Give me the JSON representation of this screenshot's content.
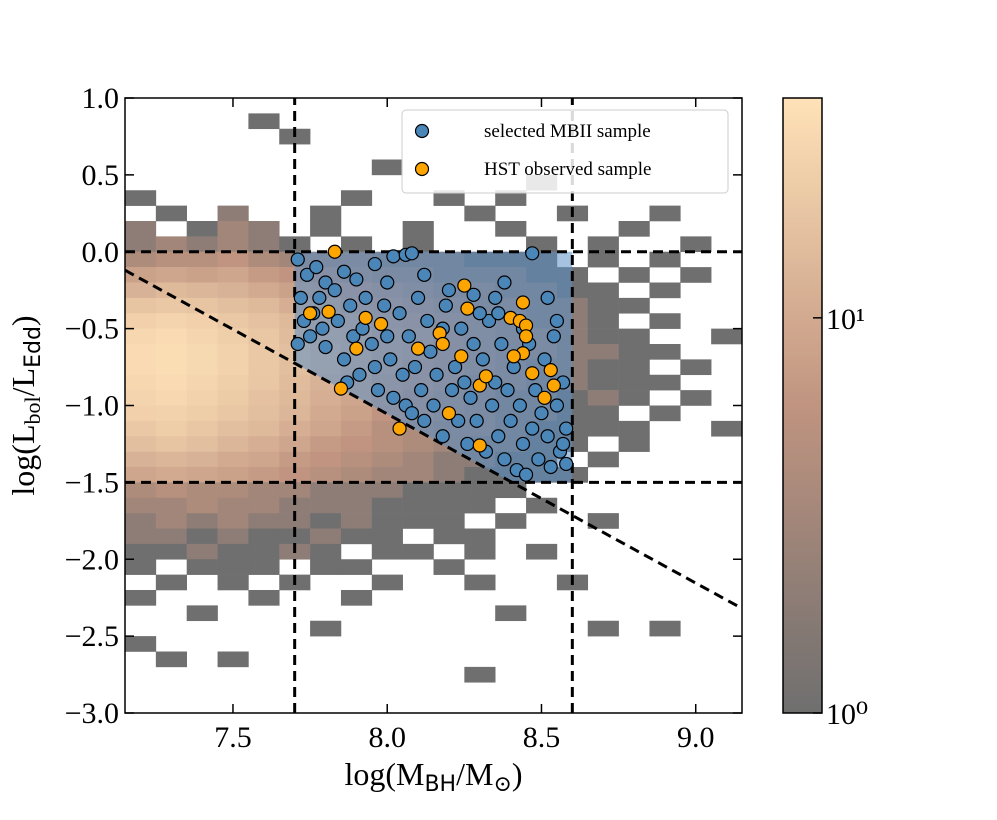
{
  "chart_data": {
    "type": "scatter",
    "xlabel": [
      "log(M",
      "BH",
      "/M",
      "⊙",
      ")"
    ],
    "ylabel": [
      "log(L",
      "bol",
      "/L",
      "Edd",
      ")"
    ],
    "xlim": [
      7.15,
      9.15
    ],
    "ylim": [
      -3.0,
      1.0
    ],
    "xticks": [
      7.5,
      {
        "value": 8.0,
        "label": "8.0"
      },
      8.5,
      {
        "value": 9.0,
        "label": "9.0"
      }
    ],
    "yticks": [
      {
        "value": 1.0,
        "label": "1.0"
      },
      0.5,
      {
        "value": 0.0,
        "label": "0.0"
      },
      {
        "value": -0.5,
        "label": "−0.5"
      },
      {
        "value": -1.0,
        "label": "−1.0"
      },
      {
        "value": -1.5,
        "label": "−1.5"
      },
      {
        "value": -2.0,
        "label": "−2.0"
      },
      {
        "value": -2.5,
        "label": "−2.5"
      },
      {
        "value": -3.0,
        "label": "−3.0"
      }
    ],
    "legend": "upper right",
    "colormap": [
      "#6f6f6f",
      "#c09480",
      "#ffe2b8"
    ],
    "clim": [
      1,
      36
    ],
    "cbar_log": true,
    "cbar_ticks": [
      {
        "value": 1,
        "label": "10⁰"
      },
      {
        "value": 10,
        "label": "10¹"
      }
    ],
    "hist": {
      "xbins": [
        7.15,
        7.25,
        7.35,
        7.45,
        7.55,
        7.65,
        7.75,
        7.85,
        7.95,
        8.05,
        8.15,
        8.25,
        8.35,
        8.45,
        8.55,
        8.65,
        8.75,
        8.85,
        8.95,
        9.05,
        9.15
      ],
      "ybins": [
        1.0,
        0.9,
        0.8,
        0.7,
        0.6,
        0.5,
        0.4,
        0.3,
        0.2,
        0.1,
        0.0,
        -0.1,
        -0.2,
        -0.3,
        -0.4,
        -0.5,
        -0.6,
        -0.7,
        -0.8,
        -0.9,
        -1.0,
        -1.1,
        -1.2,
        -1.3,
        -1.4,
        -1.5,
        -1.6,
        -1.7,
        -1.8,
        -1.9,
        -2.0,
        -2.1,
        -2.2,
        -2.3,
        -2.4,
        -2.5,
        -2.6,
        -2.7,
        -2.8,
        -2.9,
        -3.0
      ],
      "counts": [
        [
          0,
          0,
          0,
          0,
          0,
          0,
          0,
          0,
          0,
          0,
          0,
          0,
          0,
          0,
          0,
          0,
          0,
          0,
          0,
          0
        ],
        [
          0,
          0,
          0,
          0,
          1,
          0,
          0,
          0,
          0,
          0,
          0,
          0,
          0,
          0,
          0,
          0,
          0,
          0,
          0,
          0
        ],
        [
          0,
          0,
          0,
          0,
          0,
          1,
          0,
          0,
          0,
          0,
          0,
          0,
          0,
          0,
          0,
          0,
          0,
          0,
          0,
          0
        ],
        [
          0,
          0,
          0,
          0,
          0,
          0,
          0,
          0,
          0,
          0,
          0,
          0,
          0,
          0,
          0,
          0,
          0,
          0,
          0,
          0
        ],
        [
          0,
          0,
          0,
          0,
          0,
          0,
          0,
          0,
          1,
          0,
          0,
          0,
          0,
          0,
          0,
          0,
          0,
          0,
          0,
          0
        ],
        [
          0,
          0,
          0,
          0,
          0,
          0,
          0,
          0,
          0,
          0,
          0,
          0,
          0,
          1,
          0,
          0,
          0,
          0,
          0,
          0
        ],
        [
          1,
          0,
          0,
          0,
          0,
          0,
          0,
          1,
          0,
          0,
          1,
          0,
          1,
          0,
          0,
          0,
          0,
          0,
          0,
          0
        ],
        [
          0,
          1,
          0,
          2,
          0,
          0,
          1,
          0,
          0,
          0,
          0,
          1,
          0,
          0,
          1,
          0,
          0,
          1,
          0,
          0
        ],
        [
          2,
          0,
          1,
          3,
          2,
          0,
          1,
          0,
          0,
          1,
          0,
          0,
          1,
          0,
          0,
          0,
          1,
          0,
          0,
          0
        ],
        [
          2,
          3,
          2,
          3,
          2,
          1,
          0,
          1,
          0,
          1,
          0,
          0,
          0,
          1,
          0,
          1,
          0,
          0,
          1,
          0
        ],
        [
          4,
          5,
          5,
          6,
          4,
          3,
          3,
          3,
          2,
          2,
          2,
          1,
          1,
          1,
          0,
          1,
          0,
          1,
          0,
          0
        ],
        [
          8,
          9,
          8,
          9,
          7,
          6,
          5,
          4,
          3,
          3,
          2,
          2,
          2,
          1,
          1,
          0,
          1,
          0,
          1,
          0
        ],
        [
          12,
          14,
          13,
          12,
          10,
          8,
          7,
          6,
          5,
          4,
          3,
          3,
          2,
          2,
          1,
          1,
          0,
          1,
          0,
          0
        ],
        [
          18,
          20,
          18,
          16,
          14,
          11,
          9,
          7,
          6,
          5,
          4,
          3,
          3,
          2,
          2,
          1,
          1,
          0,
          0,
          0
        ],
        [
          24,
          26,
          24,
          20,
          17,
          14,
          11,
          9,
          7,
          6,
          5,
          4,
          3,
          2,
          2,
          1,
          0,
          1,
          0,
          0
        ],
        [
          28,
          30,
          27,
          23,
          19,
          15,
          12,
          10,
          8,
          7,
          5,
          4,
          3,
          3,
          2,
          1,
          1,
          0,
          0,
          1
        ],
        [
          30,
          32,
          29,
          25,
          20,
          16,
          13,
          10,
          8,
          7,
          5,
          4,
          3,
          3,
          2,
          2,
          1,
          1,
          0,
          0
        ],
        [
          30,
          32,
          29,
          25,
          20,
          16,
          13,
          10,
          8,
          6,
          5,
          4,
          3,
          2,
          2,
          1,
          1,
          0,
          1,
          0
        ],
        [
          28,
          30,
          27,
          23,
          19,
          15,
          12,
          9,
          7,
          6,
          5,
          3,
          3,
          2,
          2,
          1,
          1,
          1,
          0,
          0
        ],
        [
          26,
          28,
          25,
          21,
          17,
          14,
          11,
          9,
          7,
          5,
          4,
          3,
          2,
          2,
          1,
          2,
          1,
          0,
          1,
          0
        ],
        [
          24,
          25,
          22,
          19,
          16,
          13,
          10,
          8,
          6,
          5,
          4,
          3,
          2,
          2,
          1,
          1,
          0,
          1,
          0,
          0
        ],
        [
          20,
          22,
          19,
          16,
          14,
          11,
          9,
          7,
          5,
          4,
          3,
          3,
          2,
          1,
          1,
          1,
          1,
          0,
          0,
          1
        ],
        [
          16,
          18,
          16,
          13,
          11,
          9,
          7,
          6,
          5,
          4,
          3,
          2,
          2,
          1,
          1,
          0,
          1,
          0,
          0,
          0
        ],
        [
          12,
          13,
          12,
          10,
          9,
          7,
          6,
          5,
          4,
          3,
          2,
          2,
          1,
          1,
          0,
          1,
          0,
          0,
          0,
          0
        ],
        [
          9,
          10,
          9,
          8,
          7,
          6,
          5,
          4,
          3,
          3,
          2,
          1,
          1,
          1,
          1,
          0,
          0,
          0,
          0,
          0
        ],
        [
          4,
          5,
          4,
          4,
          3,
          3,
          2,
          2,
          2,
          1,
          1,
          1,
          1,
          0,
          0,
          0,
          0,
          0,
          0,
          0
        ],
        [
          3,
          3,
          4,
          3,
          3,
          2,
          2,
          2,
          1,
          1,
          1,
          1,
          0,
          1,
          0,
          0,
          0,
          0,
          0,
          0
        ],
        [
          2,
          3,
          2,
          3,
          2,
          2,
          1,
          2,
          1,
          1,
          1,
          0,
          1,
          0,
          0,
          1,
          0,
          0,
          0,
          0
        ],
        [
          2,
          2,
          1,
          2,
          1,
          1,
          2,
          1,
          1,
          0,
          1,
          1,
          0,
          0,
          0,
          0,
          0,
          0,
          0,
          0
        ],
        [
          1,
          1,
          2,
          1,
          1,
          2,
          1,
          0,
          1,
          1,
          0,
          1,
          0,
          1,
          0,
          0,
          0,
          0,
          0,
          0
        ],
        [
          1,
          0,
          1,
          1,
          1,
          0,
          1,
          1,
          0,
          0,
          1,
          0,
          0,
          0,
          0,
          0,
          0,
          0,
          0,
          0
        ],
        [
          0,
          1,
          0,
          1,
          0,
          1,
          0,
          0,
          1,
          0,
          0,
          1,
          0,
          0,
          1,
          0,
          0,
          0,
          0,
          0
        ],
        [
          1,
          0,
          0,
          0,
          1,
          0,
          0,
          1,
          0,
          0,
          0,
          0,
          0,
          0,
          0,
          0,
          0,
          0,
          0,
          0
        ],
        [
          0,
          0,
          1,
          0,
          0,
          0,
          0,
          0,
          0,
          0,
          0,
          0,
          1,
          0,
          0,
          0,
          0,
          0,
          0,
          0
        ],
        [
          0,
          0,
          0,
          0,
          0,
          0,
          1,
          0,
          0,
          0,
          0,
          0,
          0,
          0,
          0,
          1,
          0,
          1,
          0,
          0
        ],
        [
          1,
          0,
          0,
          0,
          0,
          0,
          0,
          0,
          0,
          0,
          0,
          0,
          0,
          0,
          0,
          0,
          0,
          0,
          0,
          0
        ],
        [
          0,
          1,
          0,
          1,
          0,
          0,
          0,
          0,
          0,
          0,
          0,
          0,
          0,
          0,
          0,
          0,
          0,
          0,
          0,
          0
        ],
        [
          0,
          0,
          0,
          0,
          0,
          0,
          0,
          0,
          0,
          0,
          0,
          1,
          0,
          0,
          0,
          0,
          0,
          0,
          0,
          0
        ],
        [
          0,
          0,
          0,
          0,
          0,
          0,
          0,
          0,
          0,
          0,
          0,
          0,
          0,
          0,
          0,
          0,
          0,
          0,
          0,
          0
        ],
        [
          0,
          0,
          0,
          0,
          0,
          0,
          0,
          0,
          0,
          0,
          0,
          0,
          0,
          0,
          0,
          0,
          0,
          0,
          0,
          0
        ]
      ]
    },
    "selection": {
      "color": "#5b8fc6",
      "x": [
        7.7,
        8.6,
        8.6,
        8.404,
        7.7
      ],
      "y": [
        0.0,
        0.0,
        -1.5,
        -1.5,
        -0.725
      ]
    },
    "lines": [
      {
        "x": [
          7.7,
          7.7
        ],
        "y": [
          -3.0,
          1.0
        ]
      },
      {
        "x": [
          8.6,
          8.6
        ],
        "y": [
          -3.0,
          1.0
        ]
      },
      {
        "x": [
          7.15,
          9.15
        ],
        "y": [
          0.0,
          0.0
        ]
      },
      {
        "x": [
          7.15,
          9.15
        ],
        "y": [
          -1.5,
          -1.5
        ]
      },
      {
        "x": [
          7.15,
          9.15
        ],
        "y": [
          -0.12,
          -2.32
        ]
      }
    ],
    "series": [
      {
        "name": "selected MBII sample",
        "color": "#4b86b8",
        "x": [
          7.71,
          7.74,
          7.77,
          7.8,
          7.86,
          7.9,
          7.96,
          8.02,
          8.06,
          8.08,
          8.0,
          8.12,
          8.2,
          8.28,
          8.35,
          8.47,
          8.38,
          8.52,
          7.72,
          7.73,
          7.71,
          7.75,
          7.78,
          7.79,
          7.8,
          7.83,
          7.84,
          7.86,
          7.88,
          7.89,
          7.91,
          7.93,
          7.95,
          7.96,
          7.97,
          7.99,
          8.0,
          8.01,
          8.02,
          8.04,
          8.05,
          8.06,
          8.07,
          8.09,
          8.1,
          8.11,
          8.12,
          8.13,
          8.14,
          8.15,
          8.16,
          8.18,
          8.19,
          8.21,
          8.22,
          8.23,
          8.24,
          8.26,
          8.27,
          8.28,
          8.29,
          8.31,
          8.32,
          8.33,
          8.34,
          8.35,
          8.36,
          8.37,
          8.38,
          8.39,
          8.4,
          8.41,
          8.42,
          8.43,
          8.44,
          8.46,
          8.47,
          8.48,
          8.49,
          8.5,
          8.51,
          8.52,
          8.53,
          8.54,
          8.55,
          8.56,
          8.57,
          8.58,
          8.58,
          8.57,
          8.55,
          8.45,
          8.3,
          8.18,
          7.92,
          7.76,
          7.87,
          8.08,
          8.25,
          8.44,
          8.36
        ],
        "y": [
          -0.05,
          -0.15,
          -0.1,
          -0.2,
          -0.13,
          -0.18,
          -0.08,
          -0.03,
          -0.02,
          -0.01,
          -0.2,
          -0.15,
          -0.25,
          -0.28,
          -0.3,
          -0.01,
          -0.2,
          -0.3,
          -0.3,
          -0.45,
          -0.6,
          -0.55,
          -0.3,
          -0.5,
          -0.62,
          -0.25,
          -0.45,
          -0.7,
          -0.35,
          -0.55,
          -0.8,
          -0.3,
          -0.6,
          -0.75,
          -0.9,
          -0.35,
          -0.55,
          -0.7,
          -0.95,
          -0.4,
          -0.8,
          -1.0,
          -0.55,
          -0.75,
          -0.3,
          -0.9,
          -1.1,
          -0.45,
          -0.65,
          -1.0,
          -0.8,
          -1.2,
          -0.35,
          -0.9,
          -0.75,
          -1.1,
          -0.5,
          -1.25,
          -0.95,
          -0.6,
          -1.1,
          -0.7,
          -1.3,
          -0.45,
          -1.0,
          -0.85,
          -1.2,
          -0.6,
          -1.35,
          -0.9,
          -1.1,
          -0.75,
          -1.42,
          -1.0,
          -1.25,
          -0.6,
          -1.15,
          -0.9,
          -1.35,
          -1.05,
          -0.7,
          -1.2,
          -1.4,
          -0.55,
          -1.0,
          -1.3,
          -0.85,
          -1.15,
          -1.38,
          -1.25,
          -0.45,
          -1.45,
          -0.4,
          -0.5,
          -0.5,
          -0.4,
          -0.85,
          -1.05,
          -0.85,
          -0.5,
          -0.4
        ]
      },
      {
        "name": "HST observed sample",
        "color": "#ffa500",
        "x": [
          7.83,
          7.75,
          7.81,
          7.93,
          7.98,
          7.85,
          7.9,
          8.04,
          8.1,
          8.17,
          8.18,
          8.2,
          8.25,
          8.26,
          8.24,
          8.3,
          8.32,
          8.3,
          8.4,
          8.43,
          8.44,
          8.45,
          8.45,
          8.44,
          8.47,
          8.51,
          8.53,
          8.54,
          8.41
        ],
        "y": [
          0.0,
          -0.4,
          -0.39,
          -0.43,
          -0.47,
          -0.89,
          -0.63,
          -1.15,
          -0.63,
          -0.53,
          -0.6,
          -1.05,
          -0.22,
          -0.37,
          -0.68,
          -0.87,
          -0.81,
          -1.26,
          -0.43,
          -0.45,
          -0.33,
          -0.48,
          -0.55,
          -0.66,
          -0.79,
          -0.95,
          -0.77,
          -0.87,
          -0.68
        ]
      }
    ]
  }
}
